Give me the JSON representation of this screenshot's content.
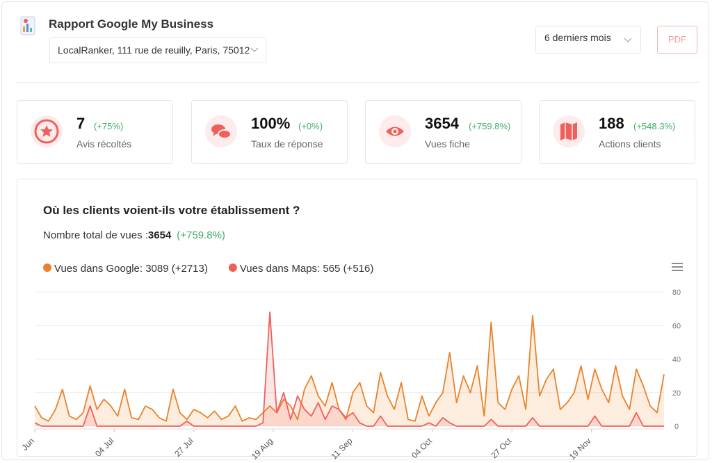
{
  "header": {
    "title": "Rapport Google My Business",
    "location": "LocalRanker, 111 rue de reuilly, Paris, 75012",
    "period": "6 derniers mois",
    "pdf_button": "PDF"
  },
  "kpis": [
    {
      "value": "7",
      "change": "(+75%)",
      "label": "Avis récoltés"
    },
    {
      "value": "100%",
      "change": "(+0%)",
      "label": "Taux de réponse"
    },
    {
      "value": "3654",
      "change": "(+759.8%)",
      "label": "Vues fiche"
    },
    {
      "value": "188",
      "change": "(+548.3%)",
      "label": "Actions clients"
    }
  ],
  "chart_data": {
    "type": "area",
    "title": "Où les clients voient-ils votre établissement ?",
    "total_label": "Nombre total de vues :",
    "total_value": "3654",
    "total_change": "(+759.8%)",
    "series": [
      {
        "name": "Vues dans Google: 3089 (+2713)",
        "color": "#e8832a",
        "values": [
          12,
          5,
          3,
          10,
          22,
          6,
          4,
          8,
          24,
          10,
          16,
          12,
          6,
          22,
          5,
          4,
          12,
          10,
          5,
          3,
          22,
          8,
          4,
          10,
          8,
          5,
          9,
          4,
          6,
          12,
          3,
          5,
          4,
          8,
          12,
          8,
          16,
          12,
          4,
          22,
          30,
          18,
          12,
          26,
          10,
          4,
          20,
          26,
          12,
          8,
          32,
          18,
          10,
          26,
          4,
          3,
          18,
          6,
          14,
          20,
          44,
          14,
          30,
          20,
          36,
          6,
          62,
          14,
          10,
          22,
          30,
          10,
          66,
          18,
          28,
          34,
          10,
          14,
          20,
          36,
          16,
          34,
          22,
          14,
          36,
          18,
          10,
          34,
          24,
          12,
          8,
          31
        ]
      },
      {
        "name": "Vues dans Maps: 565 (+516)",
        "color": "#f0605a",
        "values": [
          2,
          0,
          0,
          0,
          0,
          0,
          0,
          0,
          12,
          0,
          0,
          0,
          0,
          0,
          0,
          0,
          0,
          0,
          0,
          0,
          0,
          0,
          3,
          0,
          0,
          0,
          0,
          0,
          0,
          0,
          0,
          0,
          0,
          2,
          68,
          8,
          20,
          4,
          18,
          10,
          6,
          14,
          4,
          12,
          10,
          5,
          8,
          2,
          0,
          0,
          6,
          0,
          0,
          0,
          0,
          0,
          0,
          2,
          0,
          5,
          2,
          0,
          0,
          0,
          0,
          0,
          4,
          0,
          0,
          0,
          0,
          0,
          5,
          0,
          0,
          0,
          0,
          0,
          0,
          0,
          0,
          6,
          0,
          0,
          0,
          0,
          0,
          8,
          0,
          0,
          0,
          0
        ]
      }
    ],
    "xlim": [
      0,
      91
    ],
    "xticks": [
      {
        "value": 0,
        "label": "Jun"
      },
      {
        "value": 11.5,
        "label": "04 Jul"
      },
      {
        "value": 23,
        "label": "27 Jul"
      },
      {
        "value": 34.5,
        "label": "19 Aug"
      },
      {
        "value": 46,
        "label": "11 Sep"
      },
      {
        "value": 57.5,
        "label": "04 Oct"
      },
      {
        "value": 69,
        "label": "27 Oct"
      },
      {
        "value": 80.5,
        "label": "19 Nov"
      }
    ],
    "ylim": [
      0,
      80
    ],
    "yticks": [
      0,
      20,
      40,
      60,
      80
    ],
    "grid": true
  }
}
